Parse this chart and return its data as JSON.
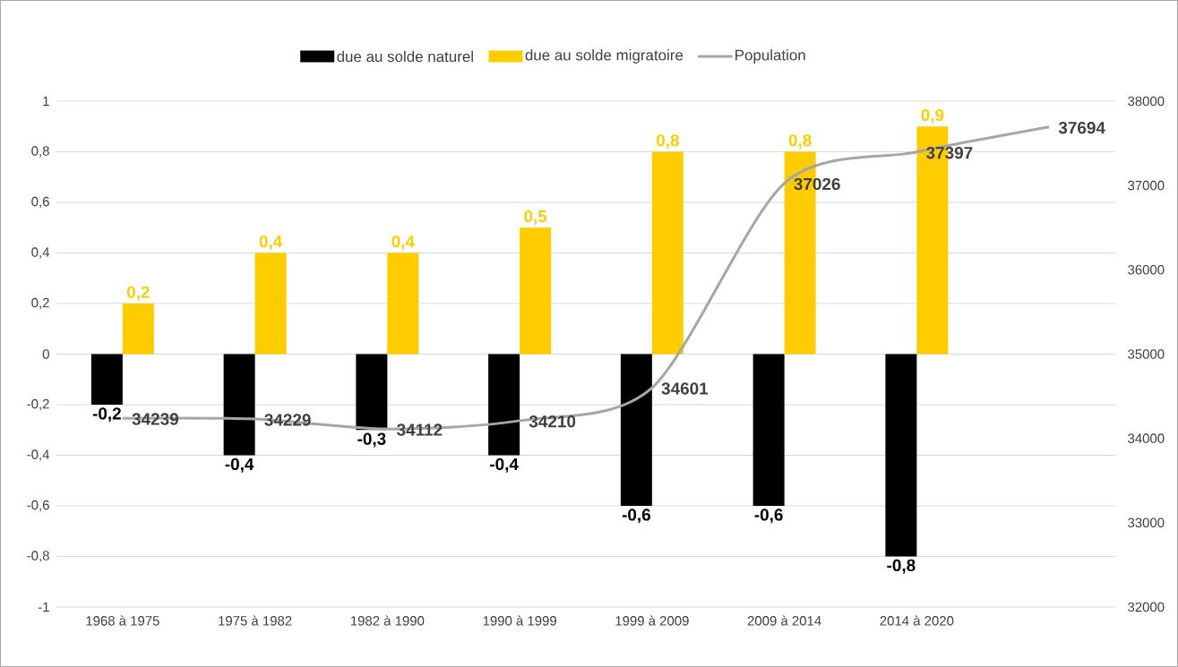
{
  "chart_data": {
    "type": "bar",
    "categories": [
      "1968 à 1975",
      "1975 à 1982",
      "1982 à 1990",
      "1990 à 1999",
      "1999 à 2009",
      "2009 à 2014",
      "2014 à 2020",
      null
    ],
    "series": [
      {
        "name": "due au solde naturel",
        "color": "#000000",
        "values": [
          -0.2,
          -0.4,
          -0.3,
          -0.4,
          -0.6,
          -0.6,
          -0.8,
          null
        ],
        "value_labels": [
          "-0,2",
          "-0,4",
          "-0,3",
          "-0,4",
          "-0,6",
          "-0,6",
          "-0,8",
          null
        ]
      },
      {
        "name": "due au solde migratoire",
        "color": "#ffcc00",
        "values": [
          0.2,
          0.4,
          0.4,
          0.5,
          0.8,
          0.8,
          0.9,
          null
        ],
        "value_labels": [
          "0,2",
          "0,4",
          "0,4",
          "0,5",
          "0,8",
          "0,8",
          "0,9",
          null
        ]
      },
      {
        "name": "Population",
        "type": "line",
        "axis": "y2",
        "color": "#a6a6a6",
        "values": [
          34239,
          34229,
          34112,
          34210,
          34601,
          37026,
          37397,
          37694
        ],
        "value_labels": [
          "34239",
          "34229",
          "34112",
          "34210",
          "34601",
          "37026",
          "37397",
          "37694"
        ]
      }
    ],
    "ylim": [
      -1,
      1
    ],
    "yticks": [
      {
        "value": -1,
        "label": "-1"
      },
      {
        "value": -0.8,
        "label": "-0,8"
      },
      {
        "value": -0.6,
        "label": "-0,6"
      },
      {
        "value": -0.4,
        "label": "-0,4"
      },
      {
        "value": -0.2,
        "label": "-0,2"
      },
      {
        "value": 0,
        "label": "0"
      },
      {
        "value": 0.2,
        "label": "0,2"
      },
      {
        "value": 0.4,
        "label": "0,4"
      },
      {
        "value": 0.6,
        "label": "0,6"
      },
      {
        "value": 0.8,
        "label": "0,8"
      },
      {
        "value": 1,
        "label": "1"
      }
    ],
    "y2lim": [
      32000,
      38000
    ],
    "y2ticks": [
      32000,
      33000,
      34000,
      35000,
      36000,
      37000,
      38000
    ],
    "grid": "y",
    "legend": "top",
    "marker": "none",
    "line_style": "solid"
  }
}
